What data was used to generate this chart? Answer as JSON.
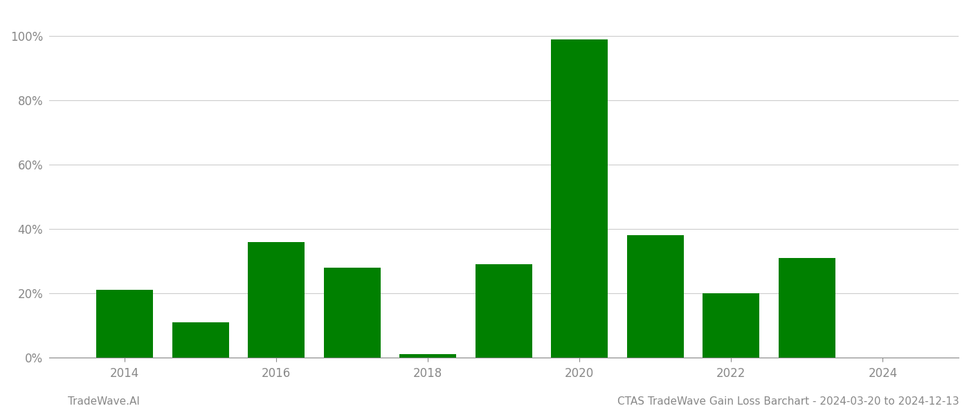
{
  "years": [
    2014,
    2015,
    2016,
    2017,
    2018,
    2019,
    2020,
    2021,
    2022,
    2023
  ],
  "values": [
    0.21,
    0.11,
    0.36,
    0.28,
    0.01,
    0.29,
    0.99,
    0.38,
    0.2,
    0.31
  ],
  "bar_color": "#008000",
  "background_color": "#ffffff",
  "grid_color": "#cccccc",
  "tick_label_color": "#888888",
  "footer_left": "TradeWave.AI",
  "footer_right": "CTAS TradeWave Gain Loss Barchart - 2024-03-20 to 2024-12-13",
  "footer_color": "#888888",
  "ylim": [
    0,
    1.08
  ],
  "yticks": [
    0.0,
    0.2,
    0.4,
    0.6,
    0.8,
    1.0
  ],
  "ytick_labels": [
    "0%",
    "20%",
    "40%",
    "60%",
    "80%",
    "100%"
  ],
  "xtick_years": [
    2014,
    2016,
    2018,
    2020,
    2022,
    2024
  ],
  "bar_width": 0.75,
  "figsize": [
    14.0,
    6.0
  ],
  "dpi": 100,
  "xlim": [
    2013.0,
    2025.0
  ]
}
